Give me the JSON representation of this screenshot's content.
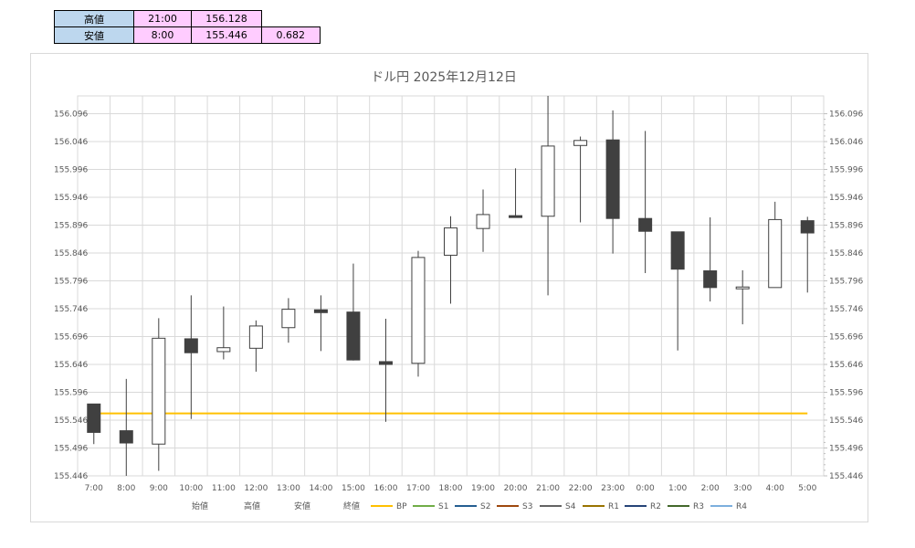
{
  "summary": {
    "high_label": "高値",
    "high_time": "21:00",
    "high_value": "156.128",
    "low_label": "安値",
    "low_time": "8:00",
    "low_value": "155.446",
    "range_value": "0.682"
  },
  "chart_data": {
    "type": "candlestick",
    "title": "ドル円 2025年12月12日",
    "xlabel": "",
    "ylabel": "",
    "ylim": [
      155.446,
      156.128
    ],
    "y_ticks": [
      "156.096",
      "156.046",
      "155.996",
      "155.946",
      "155.896",
      "155.846",
      "155.796",
      "155.746",
      "155.696",
      "155.646",
      "155.596",
      "155.546",
      "155.496",
      "155.446"
    ],
    "grid": true,
    "categories": [
      "7:00",
      "8:00",
      "9:00",
      "10:00",
      "11:00",
      "12:00",
      "13:00",
      "14:00",
      "15:00",
      "16:00",
      "17:00",
      "18:00",
      "19:00",
      "20:00",
      "21:00",
      "22:00",
      "23:00",
      "0:00",
      "1:00",
      "2:00",
      "3:00",
      "4:00",
      "5:00"
    ],
    "open": [
      155.575,
      155.527,
      155.503,
      155.692,
      155.669,
      155.675,
      155.712,
      155.744,
      155.74,
      155.651,
      155.648,
      155.842,
      155.89,
      155.913,
      155.912,
      156.039,
      156.049,
      155.908,
      155.884,
      155.814,
      155.784,
      155.784,
      155.904
    ],
    "high": [
      155.575,
      155.62,
      155.729,
      155.77,
      155.75,
      155.725,
      155.765,
      155.77,
      155.827,
      155.728,
      155.85,
      155.912,
      155.96,
      155.998,
      156.128,
      156.055,
      156.102,
      156.065,
      155.884,
      155.91,
      155.815,
      155.938,
      155.911
    ],
    "low": [
      155.503,
      155.446,
      155.455,
      155.548,
      155.655,
      155.633,
      155.685,
      155.67,
      155.653,
      155.543,
      155.624,
      155.755,
      155.848,
      155.91,
      155.77,
      155.901,
      155.845,
      155.81,
      155.671,
      155.759,
      155.718,
      155.784,
      155.775
    ],
    "close": [
      155.524,
      155.505,
      155.693,
      155.667,
      155.676,
      155.715,
      155.745,
      155.739,
      155.654,
      155.646,
      155.838,
      155.891,
      155.915,
      155.911,
      156.038,
      156.048,
      155.908,
      155.885,
      155.817,
      155.784,
      155.785,
      155.906,
      155.882
    ],
    "bp_value": 155.558,
    "series_legend": [
      "始値",
      "高値",
      "安値",
      "終値",
      "BP",
      "S1",
      "S2",
      "S3",
      "S4",
      "R1",
      "R2",
      "R3",
      "R4"
    ],
    "legend_colors": [
      "",
      "",
      "",
      "",
      "#ffc000",
      "#70ad47",
      "#255e91",
      "#9e480e",
      "#636363",
      "#997300",
      "#264478",
      "#43682b",
      "#7cafdd"
    ],
    "legend_position": "bottom",
    "colors": {
      "up_fill": "#ffffff",
      "down_fill": "#404040",
      "candle_stroke": "#404040",
      "wick": "#404040",
      "grid": "#d9d9d9",
      "bp_line": "#ffc000"
    }
  }
}
